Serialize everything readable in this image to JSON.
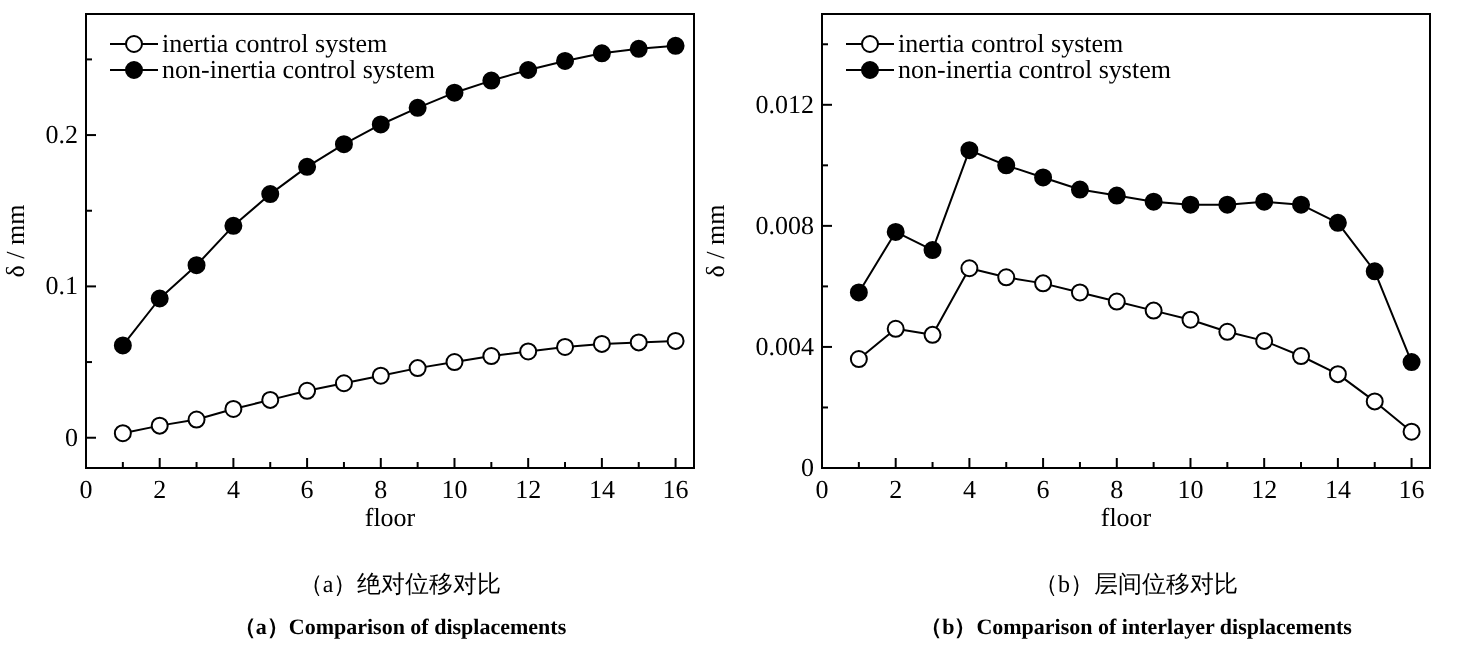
{
  "chart_data": [
    {
      "type": "line",
      "title": "（a）绝对位移对比",
      "subtitle": "（a）Comparison of displacements",
      "xlabel": "floor",
      "ylabel": "δ / mm",
      "x": [
        1,
        2,
        3,
        4,
        5,
        6,
        7,
        8,
        9,
        10,
        11,
        12,
        13,
        14,
        15,
        16
      ],
      "xlim": [
        0,
        16.5
      ],
      "ylim": [
        -0.02,
        0.28
      ],
      "xticks": [
        0,
        {
          "value": 1,
          "label": null
        },
        2,
        {
          "value": 3,
          "label": null
        },
        4,
        {
          "value": 5,
          "label": null
        },
        6,
        {
          "value": 7,
          "label": null
        },
        8,
        {
          "value": 9,
          "label": null
        },
        10,
        {
          "value": 11,
          "label": null
        },
        12,
        {
          "value": 13,
          "label": null
        },
        14,
        {
          "value": 15,
          "label": null
        },
        16
      ],
      "yticks": [
        0,
        {
          "value": 0.05,
          "label": null
        },
        0.1,
        {
          "value": 0.15,
          "label": null
        },
        0.2,
        {
          "value": 0.25,
          "label": null
        }
      ],
      "marker": "circle",
      "legend": "top left",
      "grid": false,
      "series": [
        {
          "name": "inertia control system",
          "color": "#000000",
          "values": [
            0.003,
            0.008,
            0.012,
            0.019,
            0.025,
            0.031,
            0.036,
            0.041,
            0.046,
            0.05,
            0.054,
            0.057,
            0.06,
            0.062,
            0.063,
            0.064
          ]
        },
        {
          "name": "non-inertia control system",
          "color": "#000000",
          "values": [
            0.061,
            0.092,
            0.114,
            0.14,
            0.161,
            0.179,
            0.194,
            0.207,
            0.218,
            0.228,
            0.236,
            0.243,
            0.249,
            0.254,
            0.257,
            0.259
          ]
        }
      ]
    },
    {
      "type": "line",
      "title": "（b）层间位移对比",
      "subtitle": "（b）Comparison of interlayer displacements",
      "xlabel": "floor",
      "ylabel": "δ / mm",
      "x": [
        1,
        2,
        3,
        4,
        5,
        6,
        7,
        8,
        9,
        10,
        11,
        12,
        13,
        14,
        15,
        16
      ],
      "xlim": [
        0,
        16.5
      ],
      "ylim": [
        0,
        0.015
      ],
      "xticks": [
        0,
        {
          "value": 1,
          "label": null
        },
        2,
        {
          "value": 3,
          "label": null
        },
        4,
        {
          "value": 5,
          "label": null
        },
        6,
        {
          "value": 7,
          "label": null
        },
        8,
        {
          "value": 9,
          "label": null
        },
        10,
        {
          "value": 11,
          "label": null
        },
        12,
        {
          "value": 13,
          "label": null
        },
        14,
        {
          "value": 15,
          "label": null
        },
        16
      ],
      "yticks": [
        0,
        {
          "value": 0.002,
          "label": null
        },
        0.004,
        {
          "value": 0.006,
          "label": null
        },
        0.008,
        {
          "value": 0.01,
          "label": null
        },
        0.012,
        {
          "value": 0.014,
          "label": null
        }
      ],
      "marker": "circle",
      "legend": "top left",
      "grid": false,
      "series": [
        {
          "name": "inertia control system",
          "color": "#000000",
          "values": [
            0.0036,
            0.0046,
            0.0044,
            0.0066,
            0.0063,
            0.0061,
            0.0058,
            0.0055,
            0.0052,
            0.0049,
            0.0045,
            0.0042,
            0.0037,
            0.0031,
            0.0022,
            0.0012
          ]
        },
        {
          "name": "non-inertia control system",
          "color": "#000000",
          "values": [
            0.0058,
            0.0078,
            0.0072,
            0.0105,
            0.01,
            0.0096,
            0.0092,
            0.009,
            0.0088,
            0.0087,
            0.0087,
            0.0088,
            0.0087,
            0.0081,
            0.0065,
            0.0035
          ]
        }
      ]
    }
  ]
}
